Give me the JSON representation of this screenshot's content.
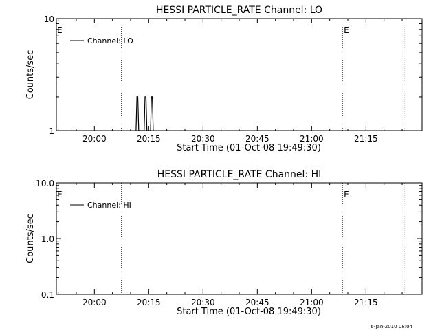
{
  "chart_data": [
    {
      "type": "line",
      "title": "HESSI PARTICLE_RATE Channel: LO",
      "xlabel": "Start Time (01-Oct-08 19:49:30)",
      "ylabel": "Counts/sec",
      "y_scale": "log",
      "ylim": [
        1,
        10
      ],
      "y_ticks": [
        1,
        10
      ],
      "y_tick_labels": [
        "1",
        "10"
      ],
      "xlim": [
        "19:49:30",
        "21:30:30"
      ],
      "x_ticks": [
        "20:00",
        "20:15",
        "20:30",
        "20:45",
        "21:00",
        "21:15"
      ],
      "legend": {
        "position": "top-left",
        "entries": [
          "Channel: LO"
        ]
      },
      "event_lines": [
        {
          "time": "20:07:30",
          "label": ""
        },
        {
          "time": "21:08:30",
          "label": "E"
        },
        {
          "time": "21:25:30",
          "label": ""
        }
      ],
      "edge_label": "E",
      "grid": false,
      "series": [
        {
          "name": "Channel: LO",
          "x": [
            "20:11:30",
            "20:11:45",
            "20:12:00",
            "20:12:15",
            "20:12:30",
            "20:13:45",
            "20:14:00",
            "20:14:15",
            "20:14:30",
            "20:15:30",
            "20:15:45",
            "20:16:00",
            "20:16:15"
          ],
          "y": [
            1,
            2,
            2,
            1,
            1,
            1,
            2,
            2,
            1,
            1,
            2,
            2,
            1
          ]
        }
      ]
    },
    {
      "type": "line",
      "title": "HESSI PARTICLE_RATE Channel: HI",
      "xlabel": "Start Time (01-Oct-08 19:49:30)",
      "ylabel": "Counts/sec",
      "y_scale": "log",
      "ylim": [
        0.1,
        10
      ],
      "y_ticks": [
        0.1,
        1,
        10
      ],
      "y_tick_labels": [
        "0.1",
        "1.0",
        "10.0"
      ],
      "xlim": [
        "19:49:30",
        "21:30:30"
      ],
      "x_ticks": [
        "20:00",
        "20:15",
        "20:30",
        "20:45",
        "21:00",
        "21:15"
      ],
      "legend": {
        "position": "top-left",
        "entries": [
          "Channel: HI"
        ]
      },
      "event_lines": [
        {
          "time": "20:07:30",
          "label": ""
        },
        {
          "time": "21:08:30",
          "label": "E"
        },
        {
          "time": "21:25:30",
          "label": ""
        }
      ],
      "edge_label": "E",
      "grid": false,
      "series": [
        {
          "name": "Channel: HI",
          "x": [],
          "y": []
        }
      ]
    }
  ],
  "footer": {
    "timestamp": "6-Jan-2010 08:04"
  }
}
